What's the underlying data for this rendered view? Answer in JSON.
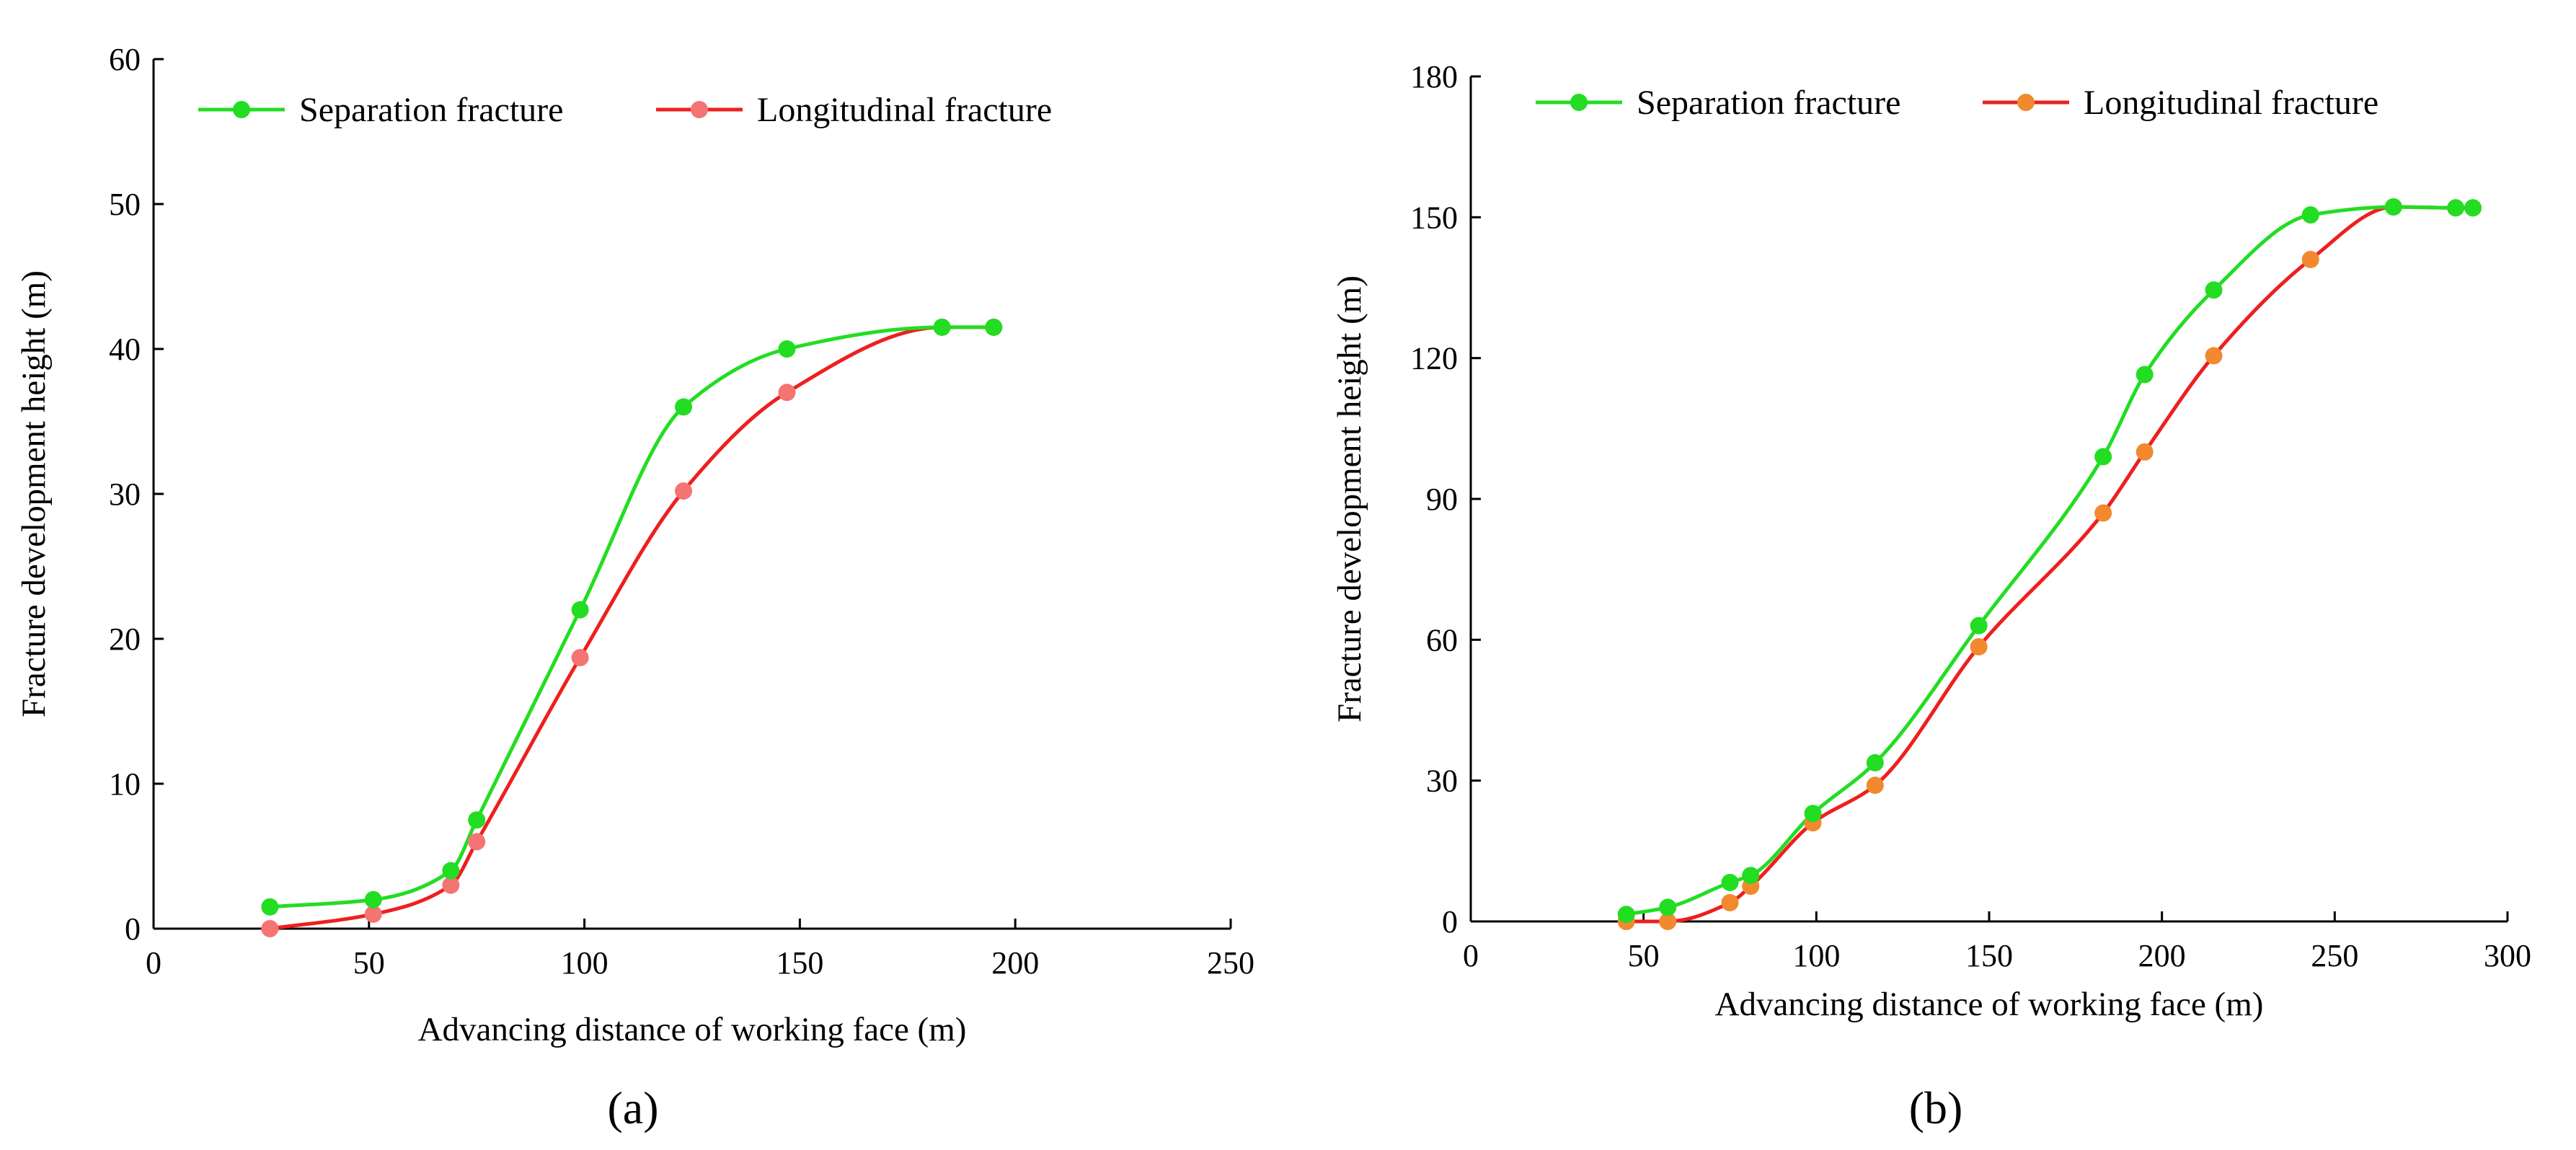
{
  "chart_data": [
    {
      "type": "line",
      "panel_label": "(a)",
      "xlabel": "Advancing distance of working face (m)",
      "ylabel": "Fracture development height (m)",
      "xlim": [
        0,
        250
      ],
      "ylim": [
        0,
        60
      ],
      "xticks": [
        0,
        50,
        100,
        150,
        200,
        250
      ],
      "yticks": [
        0,
        10,
        20,
        30,
        40,
        50,
        60
      ],
      "legend_position": "top-left",
      "series": [
        {
          "name": "Separation fracture",
          "line_color": "#22dd22",
          "marker_color": "#22dd22",
          "points": [
            [
              27,
              1.5
            ],
            [
              51,
              2.0
            ],
            [
              69,
              4.0
            ],
            [
              75,
              7.5
            ],
            [
              99,
              22.0
            ],
            [
              123,
              36.0
            ],
            [
              147,
              40.0
            ],
            [
              183,
              41.5
            ],
            [
              195,
              41.5
            ]
          ]
        },
        {
          "name": "Longitudinal fracture",
          "line_color": "#ee1f1f",
          "marker_color": "#f47474",
          "points": [
            [
              27,
              0.0
            ],
            [
              51,
              1.0
            ],
            [
              69,
              3.0
            ],
            [
              75,
              6.0
            ],
            [
              99,
              18.7
            ],
            [
              123,
              30.2
            ],
            [
              147,
              37.0
            ],
            [
              183,
              41.5
            ],
            [
              195,
              41.5
            ]
          ]
        }
      ]
    },
    {
      "type": "line",
      "panel_label": "(b)",
      "xlabel": "Advancing distance of working face (m)",
      "ylabel": "Fracture development height (m)",
      "xlim": [
        0,
        300
      ],
      "ylim": [
        0,
        180
      ],
      "xticks": [
        0,
        50,
        100,
        150,
        200,
        250,
        300
      ],
      "yticks": [
        0,
        30,
        60,
        90,
        120,
        150,
        180
      ],
      "legend_position": "top-left",
      "series": [
        {
          "name": "Separation fracture",
          "line_color": "#22dd22",
          "marker_color": "#22dd22",
          "points": [
            [
              45,
              1.5
            ],
            [
              57,
              3.0
            ],
            [
              75,
              8.3
            ],
            [
              81,
              9.8
            ],
            [
              99,
              23.0
            ],
            [
              117,
              33.8
            ],
            [
              147,
              63.0
            ],
            [
              183,
              99.0
            ],
            [
              195,
              116.5
            ],
            [
              215,
              134.5
            ],
            [
              243,
              150.5
            ],
            [
              267,
              152.2
            ],
            [
              285,
              152.0
            ],
            [
              290,
              152.0
            ]
          ]
        },
        {
          "name": "Longitudinal fracture",
          "line_color": "#ee1f1f",
          "marker_color": "#f2892e",
          "points": [
            [
              45,
              0.0
            ],
            [
              57,
              0.0
            ],
            [
              75,
              4.0
            ],
            [
              81,
              7.5
            ],
            [
              99,
              21.0
            ],
            [
              117,
              29.0
            ],
            [
              147,
              58.5
            ],
            [
              183,
              87.0
            ],
            [
              195,
              100.0
            ],
            [
              215,
              120.5
            ],
            [
              243,
              141.0
            ],
            [
              267,
              152.2
            ],
            [
              285,
              152.0
            ],
            [
              290,
              152.0
            ]
          ]
        }
      ]
    }
  ]
}
